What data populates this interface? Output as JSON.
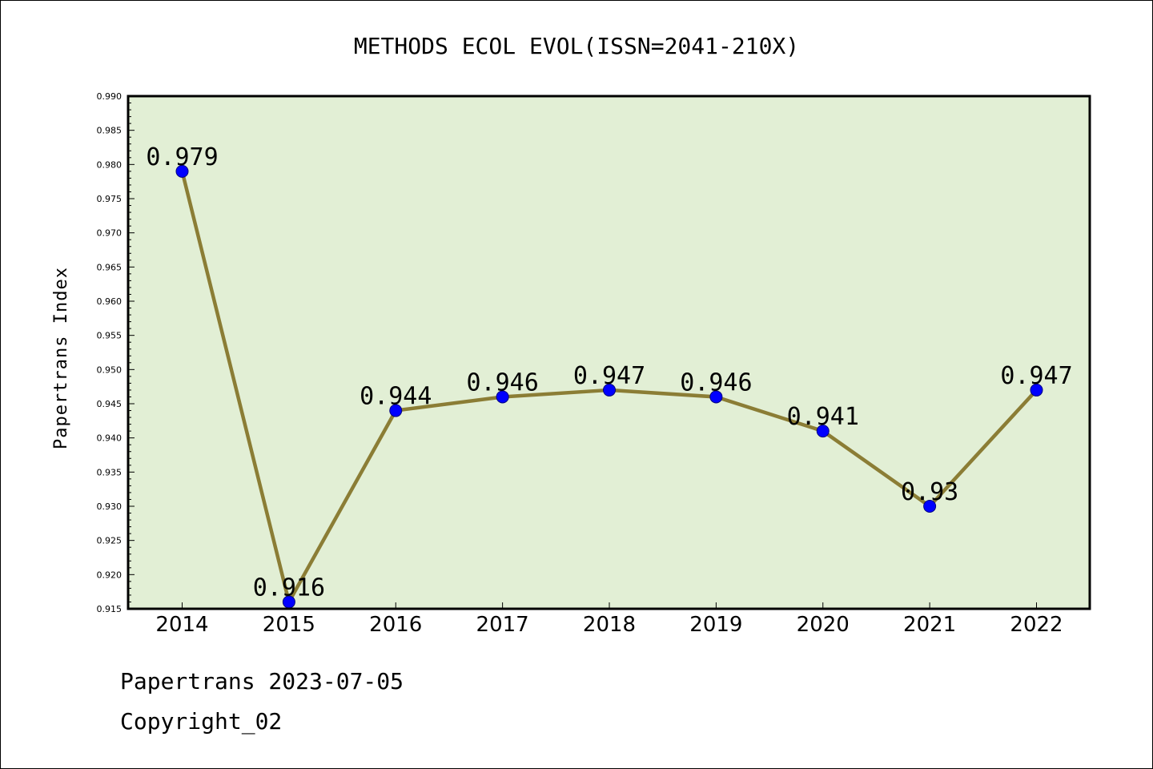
{
  "chart_data": {
    "type": "line",
    "title": "METHODS ECOL EVOL(ISSN=2041-210X)",
    "xlabel": "",
    "ylabel": "Papertrans Index",
    "categories": [
      "2014",
      "2015",
      "2016",
      "2017",
      "2018",
      "2019",
      "2020",
      "2021",
      "2022"
    ],
    "series": [
      {
        "values": [
          0.979,
          0.916,
          0.944,
          0.946,
          0.947,
          0.946,
          0.941,
          0.93,
          0.947
        ],
        "labels": [
          "0.979",
          "0.916",
          "0.944",
          "0.946",
          "0.947",
          "0.946",
          "0.941",
          "0.93",
          "0.947"
        ]
      }
    ],
    "ylim": [
      0.915,
      0.99
    ],
    "yticks": [
      "0.915",
      "0.920",
      "0.925",
      "0.930",
      "0.935",
      "0.940",
      "0.945",
      "0.950",
      "0.955",
      "0.960",
      "0.965",
      "0.970",
      "0.975",
      "0.980",
      "0.985",
      "0.990"
    ],
    "grid": false,
    "legend": "none",
    "colors": {
      "plot_bg": "#e2efd5",
      "line": "#8b7d35",
      "marker": "#0000ff",
      "marker_edge": "#000080"
    }
  },
  "footer": {
    "line1": "Papertrans 2023-07-05",
    "line2": "Copyright_02"
  }
}
